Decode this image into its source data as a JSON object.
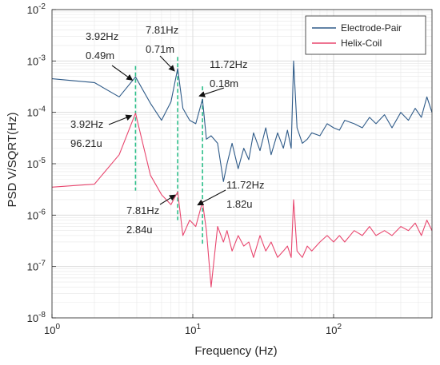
{
  "chart_data": {
    "type": "line",
    "title": "",
    "xlabel": "Frequency (Hz)",
    "ylabel": "PSD V/SQRT(Hz)",
    "xscale": "log",
    "yscale": "log",
    "xlim": [
      1,
      500
    ],
    "ylim": [
      1e-08,
      0.01
    ],
    "x_ticks": [
      {
        "value": 1,
        "base": "10",
        "exp": "0"
      },
      {
        "value": 10,
        "base": "10",
        "exp": "1"
      },
      {
        "value": 100,
        "base": "10",
        "exp": "2"
      }
    ],
    "y_ticks": [
      {
        "value": 1e-08,
        "base": "10",
        "exp": "-8"
      },
      {
        "value": 1e-07,
        "base": "10",
        "exp": "-7"
      },
      {
        "value": 1e-06,
        "base": "10",
        "exp": "-6"
      },
      {
        "value": 1e-05,
        "base": "10",
        "exp": "-5"
      },
      {
        "value": 0.0001,
        "base": "10",
        "exp": "-4"
      },
      {
        "value": 0.001,
        "base": "10",
        "exp": "-3"
      },
      {
        "value": 0.01,
        "base": "10",
        "exp": "-2"
      }
    ],
    "grid": true,
    "legend_position": "top-right",
    "series": [
      {
        "name": "Electrode-Pair",
        "color": "#2e5a88",
        "x": [
          1,
          2,
          3,
          3.92,
          5,
          6,
          7,
          7.81,
          8.5,
          9.5,
          10.5,
          11.72,
          12.5,
          13.5,
          15,
          16.5,
          17.5,
          19,
          21,
          23,
          25,
          27,
          30,
          33,
          36,
          40,
          44,
          47,
          50,
          52,
          55,
          60,
          65,
          70,
          80,
          90,
          100,
          110,
          120,
          140,
          160,
          180,
          200,
          230,
          260,
          300,
          340,
          380,
          420,
          460,
          500
        ],
        "y": [
          0.00045,
          0.00038,
          0.0002,
          0.00049,
          0.00015,
          7e-05,
          0.00016,
          0.00071,
          0.00012,
          7e-05,
          6e-05,
          0.00018,
          3e-05,
          3.5e-05,
          2.5e-05,
          4.5e-06,
          1e-05,
          2.5e-05,
          8e-06,
          2e-05,
          1.2e-05,
          4e-05,
          1.8e-05,
          5e-05,
          1.5e-05,
          4e-05,
          2e-05,
          4.5e-05,
          2e-05,
          0.001,
          5e-05,
          2.5e-05,
          3e-05,
          4e-05,
          3.5e-05,
          6e-05,
          5e-05,
          4.5e-05,
          7e-05,
          6e-05,
          5e-05,
          8e-05,
          6e-05,
          9e-05,
          5e-05,
          0.0001,
          7e-05,
          0.00012,
          8e-05,
          0.0002,
          0.0001
        ]
      },
      {
        "name": "Helix-Coil",
        "color": "#e8466e",
        "x": [
          1,
          2,
          3,
          3.92,
          5,
          6,
          7,
          7.81,
          8.5,
          9.5,
          10.5,
          11.72,
          12.5,
          13.5,
          15,
          16.5,
          17.5,
          19,
          21,
          23,
          25,
          27,
          30,
          33,
          36,
          40,
          44,
          47,
          50,
          52,
          55,
          60,
          65,
          70,
          80,
          90,
          100,
          110,
          120,
          140,
          160,
          180,
          200,
          230,
          260,
          300,
          340,
          380,
          420,
          460,
          500
        ],
        "y": [
          3.5e-06,
          4e-06,
          1.5e-05,
          9.621e-05,
          6e-06,
          2.5e-06,
          1.6e-06,
          2.84e-06,
          4e-07,
          8e-07,
          6e-07,
          1.82e-06,
          5e-07,
          4e-08,
          6e-07,
          3e-07,
          5e-07,
          2e-07,
          4e-07,
          2.5e-07,
          3e-07,
          1.5e-07,
          4e-07,
          2e-07,
          3e-07,
          1.5e-07,
          2e-07,
          2.5e-07,
          1.5e-07,
          2e-06,
          2e-07,
          1.5e-07,
          2.5e-07,
          2e-07,
          3e-07,
          4e-07,
          3e-07,
          4e-07,
          3e-07,
          5e-07,
          4e-07,
          6e-07,
          4e-07,
          5e-07,
          4e-07,
          6e-07,
          5e-07,
          7e-07,
          4e-07,
          8e-07,
          5e-07
        ]
      }
    ],
    "reference_lines": [
      {
        "x": 3.92,
        "y_from": 3e-06,
        "y_to": 0.0008
      },
      {
        "x": 7.81,
        "y_from": 8e-07,
        "y_to": 0.0012
      },
      {
        "x": 11.72,
        "y_from": 2.5e-07,
        "y_to": 0.00032
      }
    ],
    "annotations": [
      {
        "text_lines": [
          "3.92Hz",
          "0.49m"
        ],
        "point": [
          3.92,
          0.00049
        ]
      },
      {
        "text_lines": [
          "7.81Hz",
          "0.71m"
        ],
        "point": [
          7.81,
          0.00071
        ]
      },
      {
        "text_lines": [
          "11.72Hz",
          "0.18m"
        ],
        "point": [
          11.72,
          0.00018
        ]
      },
      {
        "text_lines": [
          "3.92Hz",
          "96.21u"
        ],
        "point": [
          3.92,
          9.621e-05
        ]
      },
      {
        "text_lines": [
          "7.81Hz",
          "2.84u"
        ],
        "point": [
          7.81,
          2.84e-06
        ]
      },
      {
        "text_lines": [
          "11.72Hz",
          "1.82u"
        ],
        "point": [
          11.72,
          1.82e-06
        ]
      }
    ]
  }
}
